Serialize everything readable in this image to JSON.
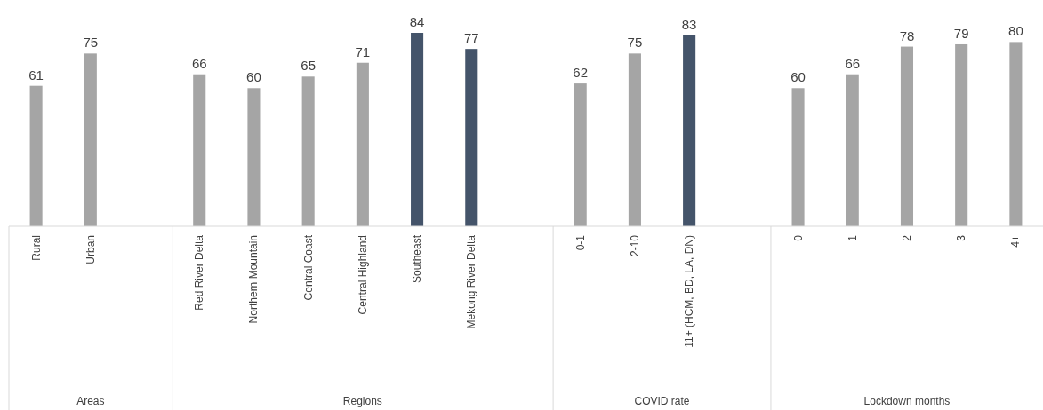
{
  "chart_data": {
    "type": "bar",
    "categories": [
      "Rural",
      "Urban",
      null,
      "Red River Delta",
      "Northern Mountain",
      "Central Coast",
      "Central Highland",
      "Southeast",
      "Mekong River Delta",
      null,
      "0-1",
      "2-10",
      "11+ (HCM, BD, LA, DN)",
      null,
      "0",
      "1",
      "2",
      "3",
      "4+"
    ],
    "values": [
      61,
      75,
      null,
      66,
      60,
      65,
      71,
      84,
      77,
      null,
      62,
      75,
      83,
      null,
      60,
      66,
      78,
      79,
      80
    ],
    "colors": [
      "#a5a5a5",
      "#a5a5a5",
      null,
      "#a5a5a5",
      "#a5a5a5",
      "#a5a5a5",
      "#a5a5a5",
      "#44546a",
      "#44546a",
      null,
      "#a5a5a5",
      "#a5a5a5",
      "#44546a",
      null,
      "#a5a5a5",
      "#a5a5a5",
      "#a5a5a5",
      "#a5a5a5",
      "#a5a5a5"
    ],
    "data_labels": true,
    "annotations": [
      "Areas",
      "Regions",
      "COVID rate",
      "Lockdown months"
    ]
  }
}
